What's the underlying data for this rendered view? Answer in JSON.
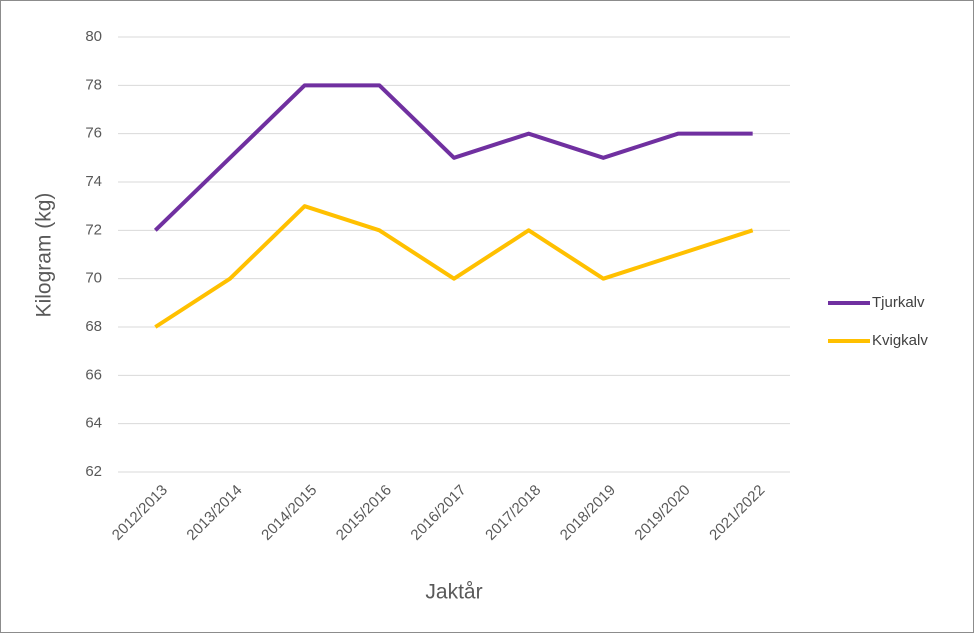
{
  "chart_data": {
    "type": "line",
    "x_label": "Jaktår",
    "y_label": "Kilogram (kg)",
    "categories": [
      "2012/2013",
      "2013/2014",
      "2014/2015",
      "2015/2016",
      "2016/2017",
      "2017/2018",
      "2018/2019",
      "2019/2020",
      "2021/2022"
    ],
    "series": [
      {
        "name": "Tjurkalv",
        "color": "#7030a0",
        "values": [
          72,
          75,
          78,
          78,
          75,
          76,
          75,
          76,
          76
        ]
      },
      {
        "name": "Kvigkalv",
        "color": "#ffc000",
        "values": [
          68,
          70,
          73,
          72,
          70,
          72,
          70,
          71,
          72
        ]
      }
    ],
    "ylim": [
      62,
      80
    ],
    "yticks": [
      62,
      64,
      66,
      68,
      70,
      72,
      74,
      76,
      78,
      80
    ],
    "grid": true,
    "legend": "right"
  }
}
